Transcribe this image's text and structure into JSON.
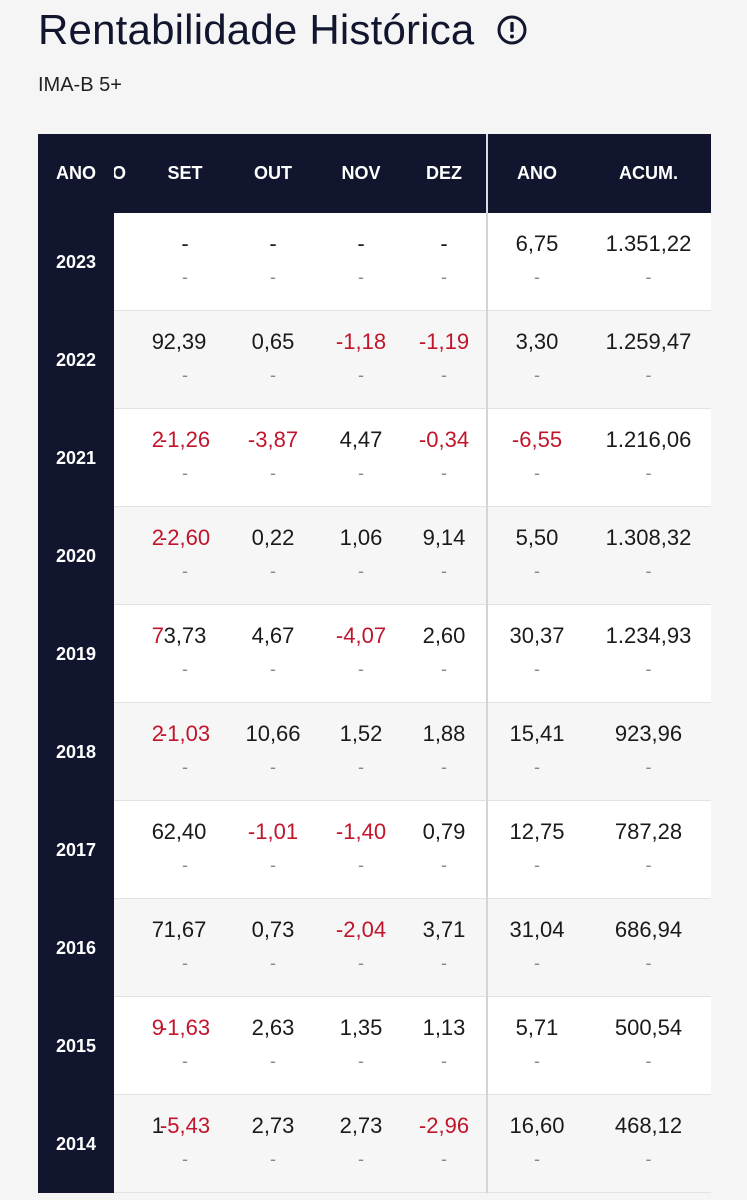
{
  "header": {
    "title": "Rentabilidade Histórica",
    "subtitle": "IMA-B 5+",
    "info_icon": "info-circle-icon"
  },
  "table": {
    "columns": {
      "year": "ANO",
      "partial": "O",
      "set": "SET",
      "out": "OUT",
      "nov": "NOV",
      "dez": "DEZ",
      "ano": "ANO",
      "acum": "ACUM."
    },
    "rows": [
      {
        "year": "2023",
        "partial": "",
        "set": "-",
        "out": "-",
        "nov": "-",
        "dez": "-",
        "ano": "6,75",
        "acum": "1.351,22"
      },
      {
        "year": "2022",
        "partial": "9",
        "set": "2,39",
        "out": "0,65",
        "nov": "-1,18",
        "dez": "-1,19",
        "ano": "3,30",
        "acum": "1.259,47"
      },
      {
        "year": "2021",
        "partial": "2",
        "set": "-1,26",
        "out": "-3,87",
        "nov": "4,47",
        "dez": "-0,34",
        "ano": "-6,55",
        "acum": "1.216,06"
      },
      {
        "year": "2020",
        "partial": "2",
        "set": "-2,60",
        "out": "0,22",
        "nov": "1,06",
        "dez": "9,14",
        "ano": "5,50",
        "acum": "1.308,32"
      },
      {
        "year": "2019",
        "partial": "7",
        "set": "3,73",
        "out": "4,67",
        "nov": "-4,07",
        "dez": "2,60",
        "ano": "30,37",
        "acum": "1.234,93"
      },
      {
        "year": "2018",
        "partial": "2",
        "set": "-1,03",
        "out": "10,66",
        "nov": "1,52",
        "dez": "1,88",
        "ano": "15,41",
        "acum": "923,96"
      },
      {
        "year": "2017",
        "partial": "6",
        "set": "2,40",
        "out": "-1,01",
        "nov": "-1,40",
        "dez": "0,79",
        "ano": "12,75",
        "acum": "787,28"
      },
      {
        "year": "2016",
        "partial": "7",
        "set": "1,67",
        "out": "0,73",
        "nov": "-2,04",
        "dez": "3,71",
        "ano": "31,04",
        "acum": "686,94"
      },
      {
        "year": "2015",
        "partial": "9",
        "set": "-1,63",
        "out": "2,63",
        "nov": "1,35",
        "dez": "1,13",
        "ano": "5,71",
        "acum": "500,54"
      },
      {
        "year": "2014",
        "partial": "1",
        "set": "-5,43",
        "out": "2,73",
        "nov": "2,73",
        "dez": "-2,96",
        "ano": "16,60",
        "acum": "468,12"
      }
    ],
    "sub_value": "-",
    "colors": {
      "header_bg": "#11162e",
      "negative": "#c0152b",
      "positive": "#1a1a1a"
    }
  }
}
